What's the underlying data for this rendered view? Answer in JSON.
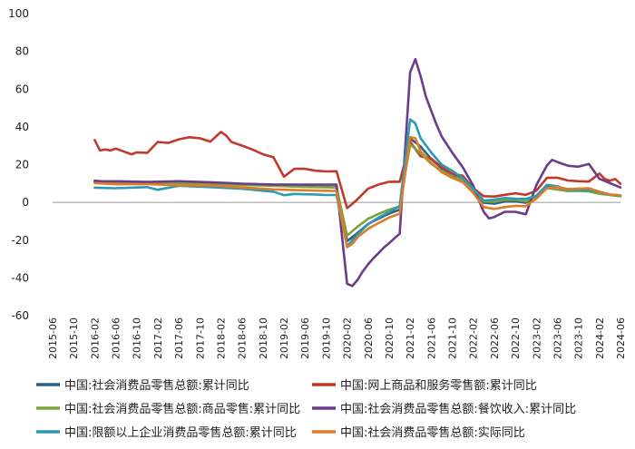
{
  "chart_data": {
    "type": "line",
    "title": "",
    "xlabel": "",
    "ylabel": "",
    "ylim": [
      -60,
      100
    ],
    "yticks": [
      -60,
      -40,
      -20,
      0,
      20,
      40,
      60,
      80,
      100
    ],
    "grid": false,
    "legend": "bottom",
    "x_start": "2015-06",
    "x_end": "2024-06",
    "x_tick_labels": [
      "2015-06",
      "2015-10",
      "2016-02",
      "2016-06",
      "2016-10",
      "2017-02",
      "2017-06",
      "2017-10",
      "2018-02",
      "2018-06",
      "2018-10",
      "2019-02",
      "2019-06",
      "2019-10",
      "2020-02",
      "2020-06",
      "2020-10",
      "2021-02",
      "2021-06",
      "2021-10",
      "2022-02",
      "2022-06",
      "2022-10",
      "2023-02",
      "2023-06",
      "2023-10",
      "2024-02",
      "2024-06"
    ],
    "series": [
      {
        "name": "中国:社会消费品零售总额:累计同比",
        "color": "#2e5f8a",
        "points": [
          [
            "2016-02",
            11.5
          ],
          [
            "2016-06",
            10.5
          ],
          [
            "2016-12",
            10.5
          ],
          [
            "2017-06",
            10.5
          ],
          [
            "2017-12",
            10.2
          ],
          [
            "2018-06",
            9.4
          ],
          [
            "2018-12",
            9.0
          ],
          [
            "2019-06",
            8.4
          ],
          [
            "2019-12",
            8.0
          ],
          [
            "2020-02",
            -20.5
          ],
          [
            "2020-04",
            -16.2
          ],
          [
            "2020-06",
            -11.4
          ],
          [
            "2020-08",
            -8.6
          ],
          [
            "2020-10",
            -5.9
          ],
          [
            "2020-12",
            -3.9
          ],
          [
            "2021-02",
            33.8
          ],
          [
            "2021-04",
            29.6
          ],
          [
            "2021-06",
            23.0
          ],
          [
            "2021-08",
            18.1
          ],
          [
            "2021-10",
            14.9
          ],
          [
            "2021-12",
            12.5
          ],
          [
            "2022-02",
            6.7
          ],
          [
            "2022-04",
            -0.2
          ],
          [
            "2022-06",
            -0.7
          ],
          [
            "2022-08",
            0.5
          ],
          [
            "2022-10",
            0.6
          ],
          [
            "2022-12",
            -0.2
          ],
          [
            "2023-02",
            3.5
          ],
          [
            "2023-04",
            8.5
          ],
          [
            "2023-06",
            8.2
          ],
          [
            "2023-08",
            7.0
          ],
          [
            "2023-10",
            6.9
          ],
          [
            "2023-12",
            7.2
          ],
          [
            "2024-02",
            5.5
          ],
          [
            "2024-04",
            4.1
          ],
          [
            "2024-06",
            3.7
          ]
        ]
      },
      {
        "name": "中国:网上商品和服务零售额:累计同比",
        "color": "#c0392b",
        "points": [
          [
            "2016-02",
            33.0
          ],
          [
            "2016-03",
            27.5
          ],
          [
            "2016-04",
            28.0
          ],
          [
            "2016-05",
            27.5
          ],
          [
            "2016-06",
            28.5
          ],
          [
            "2016-08",
            26.5
          ],
          [
            "2016-09",
            25.5
          ],
          [
            "2016-10",
            26.5
          ],
          [
            "2016-12",
            26.2
          ],
          [
            "2017-02",
            32.0
          ],
          [
            "2017-04",
            31.5
          ],
          [
            "2017-06",
            33.4
          ],
          [
            "2017-08",
            34.5
          ],
          [
            "2017-10",
            34.0
          ],
          [
            "2017-12",
            32.2
          ],
          [
            "2018-02",
            37.3
          ],
          [
            "2018-03",
            35.4
          ],
          [
            "2018-04",
            32.0
          ],
          [
            "2018-06",
            30.1
          ],
          [
            "2018-08",
            28.0
          ],
          [
            "2018-10",
            25.5
          ],
          [
            "2018-12",
            23.9
          ],
          [
            "2019-02",
            13.6
          ],
          [
            "2019-04",
            17.8
          ],
          [
            "2019-06",
            17.8
          ],
          [
            "2019-08",
            16.8
          ],
          [
            "2019-10",
            16.4
          ],
          [
            "2019-12",
            16.5
          ],
          [
            "2020-02",
            -3.0
          ],
          [
            "2020-03",
            -0.8
          ],
          [
            "2020-04",
            1.7
          ],
          [
            "2020-06",
            7.3
          ],
          [
            "2020-08",
            9.5
          ],
          [
            "2020-10",
            10.9
          ],
          [
            "2020-12",
            10.9
          ],
          [
            "2021-02",
            32.1
          ],
          [
            "2021-04",
            24.4
          ],
          [
            "2021-06",
            23.2
          ],
          [
            "2021-08",
            18.7
          ],
          [
            "2021-10",
            15.2
          ],
          [
            "2021-12",
            14.1
          ],
          [
            "2022-02",
            7.5
          ],
          [
            "2022-04",
            3.3
          ],
          [
            "2022-06",
            3.1
          ],
          [
            "2022-08",
            4.0
          ],
          [
            "2022-10",
            4.8
          ],
          [
            "2022-12",
            4.0
          ],
          [
            "2023-02",
            6.2
          ],
          [
            "2023-04",
            13.0
          ],
          [
            "2023-06",
            13.1
          ],
          [
            "2023-08",
            11.6
          ],
          [
            "2023-10",
            11.2
          ],
          [
            "2023-12",
            11.0
          ],
          [
            "2024-02",
            15.3
          ],
          [
            "2024-03",
            12.4
          ],
          [
            "2024-04",
            11.5
          ],
          [
            "2024-05",
            12.4
          ],
          [
            "2024-06",
            9.8
          ]
        ]
      },
      {
        "name": "中国:社会消费品零售总额:商品零售:累计同比",
        "color": "#7aa33a",
        "points": [
          [
            "2016-02",
            10.8
          ],
          [
            "2016-06",
            10.2
          ],
          [
            "2016-12",
            10.0
          ],
          [
            "2017-06",
            10.3
          ],
          [
            "2017-12",
            10.0
          ],
          [
            "2018-06",
            9.2
          ],
          [
            "2018-12",
            8.8
          ],
          [
            "2019-06",
            8.2
          ],
          [
            "2019-12",
            7.9
          ],
          [
            "2020-02",
            -17.6
          ],
          [
            "2020-04",
            -12.8
          ],
          [
            "2020-06",
            -8.7
          ],
          [
            "2020-08",
            -6.1
          ],
          [
            "2020-10",
            -3.8
          ],
          [
            "2020-12",
            -2.3
          ],
          [
            "2021-02",
            30.7
          ],
          [
            "2021-04",
            25.9
          ],
          [
            "2021-06",
            20.5
          ],
          [
            "2021-08",
            16.6
          ],
          [
            "2021-10",
            13.9
          ],
          [
            "2021-12",
            11.8
          ],
          [
            "2022-02",
            6.5
          ],
          [
            "2022-04",
            0.5
          ],
          [
            "2022-06",
            0.3
          ],
          [
            "2022-08",
            1.3
          ],
          [
            "2022-10",
            1.4
          ],
          [
            "2022-12",
            0.5
          ],
          [
            "2023-02",
            2.9
          ],
          [
            "2023-04",
            7.6
          ],
          [
            "2023-06",
            6.8
          ],
          [
            "2023-08",
            6.0
          ],
          [
            "2023-10",
            6.1
          ],
          [
            "2023-12",
            5.8
          ],
          [
            "2024-02",
            4.6
          ],
          [
            "2024-04",
            3.9
          ],
          [
            "2024-06",
            3.2
          ]
        ]
      },
      {
        "name": "中国:社会消费品零售总额:餐饮收入:累计同比",
        "color": "#6a3d8a",
        "points": [
          [
            "2016-02",
            11.1
          ],
          [
            "2016-06",
            11.2
          ],
          [
            "2016-12",
            10.8
          ],
          [
            "2017-06",
            11.2
          ],
          [
            "2017-12",
            10.7
          ],
          [
            "2018-06",
            9.9
          ],
          [
            "2018-12",
            9.5
          ],
          [
            "2019-06",
            9.4
          ],
          [
            "2019-12",
            9.4
          ],
          [
            "2020-02",
            -43.1
          ],
          [
            "2020-03",
            -44.3
          ],
          [
            "2020-04",
            -41.0
          ],
          [
            "2020-05",
            -36.5
          ],
          [
            "2020-06",
            -32.8
          ],
          [
            "2020-07",
            -29.6
          ],
          [
            "2020-08",
            -26.8
          ],
          [
            "2020-09",
            -23.9
          ],
          [
            "2020-10",
            -21.6
          ],
          [
            "2020-11",
            -19.0
          ],
          [
            "2020-12",
            -16.6
          ],
          [
            "2021-02",
            68.9
          ],
          [
            "2021-03",
            75.9
          ],
          [
            "2021-04",
            66.8
          ],
          [
            "2021-05",
            56.0
          ],
          [
            "2021-06",
            48.6
          ],
          [
            "2021-07",
            41.3
          ],
          [
            "2021-08",
            34.9
          ],
          [
            "2021-10",
            26.4
          ],
          [
            "2021-12",
            18.6
          ],
          [
            "2022-02",
            8.9
          ],
          [
            "2022-03",
            1.4
          ],
          [
            "2022-04",
            -5.1
          ],
          [
            "2022-05",
            -8.5
          ],
          [
            "2022-06",
            -7.7
          ],
          [
            "2022-08",
            -5.0
          ],
          [
            "2022-10",
            -5.0
          ],
          [
            "2022-12",
            -6.3
          ],
          [
            "2023-02",
            9.2
          ],
          [
            "2023-04",
            19.5
          ],
          [
            "2023-05",
            22.5
          ],
          [
            "2023-06",
            21.4
          ],
          [
            "2023-08",
            19.4
          ],
          [
            "2023-10",
            18.9
          ],
          [
            "2023-12",
            20.4
          ],
          [
            "2024-02",
            12.5
          ],
          [
            "2024-04",
            10.2
          ],
          [
            "2024-06",
            7.9
          ]
        ]
      },
      {
        "name": "中国:限额以上企业消费品零售总额:累计同比",
        "color": "#2a9bb5",
        "points": [
          [
            "2016-02",
            7.8
          ],
          [
            "2016-06",
            7.5
          ],
          [
            "2016-12",
            8.1
          ],
          [
            "2017-02",
            6.7
          ],
          [
            "2017-06",
            8.8
          ],
          [
            "2017-12",
            8.1
          ],
          [
            "2018-06",
            7.2
          ],
          [
            "2018-12",
            5.7
          ],
          [
            "2019-02",
            3.8
          ],
          [
            "2019-04",
            4.5
          ],
          [
            "2019-06",
            4.3
          ],
          [
            "2019-08",
            4.2
          ],
          [
            "2019-10",
            3.9
          ],
          [
            "2019-12",
            3.9
          ],
          [
            "2020-02",
            -23.2
          ],
          [
            "2020-04",
            -17.0
          ],
          [
            "2020-06",
            -11.5
          ],
          [
            "2020-08",
            -8.0
          ],
          [
            "2020-10",
            -5.1
          ],
          [
            "2020-12",
            -1.9
          ],
          [
            "2021-02",
            44.0
          ],
          [
            "2021-03",
            41.8
          ],
          [
            "2021-04",
            34.0
          ],
          [
            "2021-06",
            26.5
          ],
          [
            "2021-08",
            20.0
          ],
          [
            "2021-10",
            16.8
          ],
          [
            "2021-12",
            12.8
          ],
          [
            "2022-02",
            7.2
          ],
          [
            "2022-04",
            1.0
          ],
          [
            "2022-06",
            1.5
          ],
          [
            "2022-08",
            2.3
          ],
          [
            "2022-10",
            2.0
          ],
          [
            "2022-12",
            1.9
          ],
          [
            "2023-02",
            3.5
          ],
          [
            "2023-04",
            9.3
          ],
          [
            "2023-06",
            8.5
          ],
          [
            "2023-08",
            6.7
          ],
          [
            "2023-10",
            6.5
          ],
          [
            "2023-12",
            6.5
          ],
          [
            "2024-02",
            5.5
          ],
          [
            "2024-04",
            4.0
          ],
          [
            "2024-06",
            3.5
          ]
        ]
      },
      {
        "name": "中国:社会消费品零售总额:实际同比",
        "color": "#e07b2a",
        "points": [
          [
            "2016-02",
            10.2
          ],
          [
            "2016-06",
            9.6
          ],
          [
            "2016-12",
            9.6
          ],
          [
            "2017-06",
            9.1
          ],
          [
            "2017-12",
            9.0
          ],
          [
            "2018-06",
            7.9
          ],
          [
            "2018-12",
            6.9
          ],
          [
            "2019-06",
            6.4
          ],
          [
            "2019-12",
            6.0
          ],
          [
            "2020-02",
            -23.7
          ],
          [
            "2020-03",
            -22.0
          ],
          [
            "2020-04",
            -18.4
          ],
          [
            "2020-06",
            -14.0
          ],
          [
            "2020-08",
            -10.9
          ],
          [
            "2020-10",
            -8.0
          ],
          [
            "2020-12",
            -6.0
          ],
          [
            "2021-02",
            34.6
          ],
          [
            "2021-03",
            34.0
          ],
          [
            "2021-04",
            27.0
          ],
          [
            "2021-06",
            21.0
          ],
          [
            "2021-08",
            16.0
          ],
          [
            "2021-10",
            13.0
          ],
          [
            "2021-12",
            10.7
          ],
          [
            "2022-02",
            5.0
          ],
          [
            "2022-04",
            -2.5
          ],
          [
            "2022-06",
            -3.5
          ],
          [
            "2022-08",
            -2.5
          ],
          [
            "2022-10",
            -1.8
          ],
          [
            "2022-12",
            -2.0
          ],
          [
            "2023-02",
            2.0
          ],
          [
            "2023-04",
            7.5
          ],
          [
            "2023-06",
            8.2
          ],
          [
            "2023-08",
            7.0
          ],
          [
            "2023-10",
            7.3
          ],
          [
            "2023-12",
            7.5
          ],
          [
            "2024-02",
            5.7
          ],
          [
            "2024-04",
            4.2
          ],
          [
            "2024-06",
            3.6
          ]
        ]
      }
    ]
  }
}
